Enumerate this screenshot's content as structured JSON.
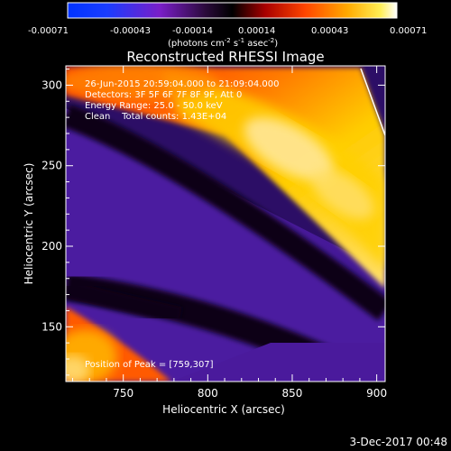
{
  "colorbar": {
    "ticks": [
      "-0.00071",
      "-0.00043",
      "-0.00014",
      "0.00014",
      "0.00043",
      "0.00071"
    ],
    "unit_main": "(photons cm",
    "unit_sup1": "-2",
    "unit_mid": " s",
    "unit_sup2": "-1",
    "unit_end": " asec",
    "unit_sup3": "-2",
    "unit_close": ")"
  },
  "chart_data": {
    "type": "heatmap",
    "title": "Reconstructed RHESSI Image",
    "xlabel": "Heliocentric X (arcsec)",
    "ylabel": "Heliocentric Y (arcsec)",
    "xlim": [
      716,
      905
    ],
    "ylim": [
      116,
      312
    ],
    "x_ticks": [
      750,
      800,
      850,
      900
    ],
    "y_ticks": [
      150,
      200,
      250,
      300
    ],
    "colorscale": "thermal (blue-purple-black-red-orange-yellow-white)",
    "value_range": [
      -0.00071,
      0.00071
    ],
    "annotations": [
      "26-Jun-2015 20:59:04.000 to 21:09:04.000",
      "Detectors: 3F 5F 6F 7F 8F 9F, Att 0",
      "Energy Range: 25.0 - 50.0 keV",
      "Clean    Total counts: 1.43E+04"
    ],
    "peak_label": "Position of Peak = [759,307]",
    "peak": [
      759,
      307
    ]
  },
  "footer": {
    "date": "3-Dec-2017 00:48"
  },
  "colors": {
    "background": "#000000",
    "purple": "#4a1a9c",
    "dark": "#0a0416",
    "red": "#c00000",
    "orange": "#ff7a00",
    "yellow": "#ffd800",
    "white": "#ffffee"
  }
}
